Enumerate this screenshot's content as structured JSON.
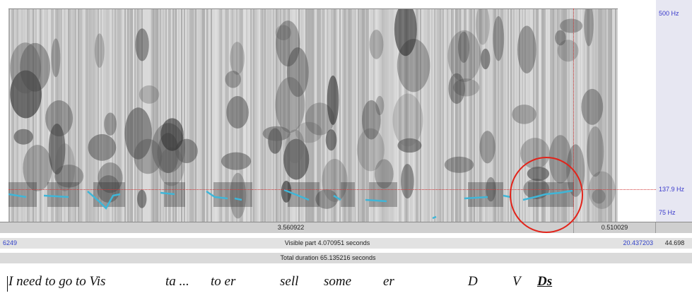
{
  "axis": {
    "top_label": "500 Hz",
    "pitch_label": "137.9 Hz",
    "bottom_label": "75 Hz"
  },
  "selection_bar": {
    "left_duration": "3.560922",
    "right_duration": "0.510029"
  },
  "visible_bar": {
    "start_time": "6249",
    "label": "Visible part 4.070951 seconds",
    "end_time": "20.437203",
    "total_end": "44.698"
  },
  "total_bar": {
    "label": "Total duration 65.135216 seconds"
  },
  "transcript": {
    "words": [
      "I need to  go to Vis",
      "ta ...",
      "to  er",
      "sell",
      "some",
      "er",
      "D",
      "V",
      "Ds"
    ]
  },
  "colors": {
    "pitch_curve": "#3fb6d8",
    "cursor_line": "#d23a3a",
    "highlight_circle": "#e2231a",
    "axis_text": "#3a3acb"
  }
}
